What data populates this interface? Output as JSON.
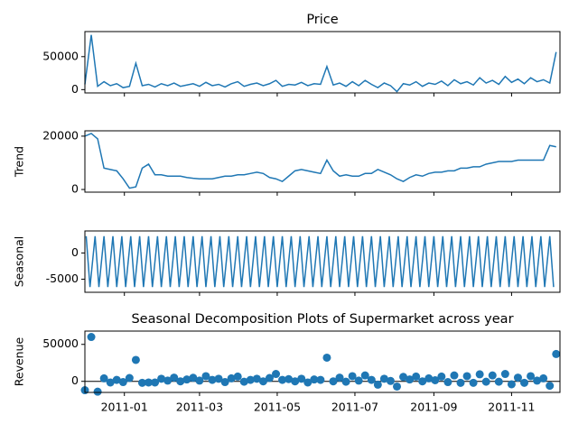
{
  "chart_data": [
    {
      "type": "line",
      "title": "Price",
      "color": "#1f77b4",
      "x": [
        0,
        5,
        10,
        15,
        20,
        25,
        30,
        35,
        40,
        45,
        50,
        55,
        60,
        65,
        70,
        75,
        80,
        85,
        90,
        95,
        100,
        105,
        110,
        115,
        120,
        125,
        130,
        135,
        140,
        145,
        150,
        155,
        160,
        165,
        170,
        175,
        180,
        185,
        190,
        195,
        200,
        205,
        210,
        215,
        220,
        225,
        230,
        235,
        240,
        245,
        250,
        255,
        260,
        265,
        270,
        275,
        280,
        285,
        290,
        295,
        300,
        305,
        310,
        315,
        320,
        325,
        330,
        335,
        340,
        345,
        350,
        355,
        360,
        365,
        370
      ],
      "values": [
        8000,
        83000,
        5000,
        12000,
        6000,
        9000,
        3000,
        5000,
        40000,
        6000,
        8000,
        4000,
        9000,
        6000,
        10000,
        5000,
        7000,
        9000,
        5000,
        11000,
        6000,
        8000,
        4000,
        9000,
        12000,
        5000,
        8000,
        10000,
        6000,
        9000,
        14000,
        5000,
        8000,
        7000,
        11000,
        6000,
        9000,
        8000,
        35000,
        7000,
        10000,
        5000,
        12000,
        6000,
        14000,
        8000,
        3000,
        10000,
        6000,
        -3000,
        9000,
        7000,
        12000,
        5000,
        10000,
        8000,
        13000,
        6000,
        15000,
        9000,
        12000,
        7000,
        18000,
        10000,
        14000,
        8000,
        20000,
        11000,
        16000,
        9000,
        18000,
        12000,
        15000,
        10000,
        57000
      ],
      "xlim": [
        0,
        373
      ],
      "ylim": [
        -5000,
        88000
      ],
      "yticks": [
        0,
        50000
      ]
    },
    {
      "type": "line",
      "y_label": "Trend",
      "color": "#1f77b4",
      "x": [
        0,
        5,
        10,
        15,
        20,
        25,
        30,
        35,
        40,
        45,
        50,
        55,
        60,
        65,
        70,
        75,
        80,
        85,
        90,
        95,
        100,
        105,
        110,
        115,
        120,
        125,
        130,
        135,
        140,
        145,
        150,
        155,
        160,
        165,
        170,
        175,
        180,
        185,
        190,
        195,
        200,
        205,
        210,
        215,
        220,
        225,
        230,
        235,
        240,
        245,
        250,
        255,
        260,
        265,
        270,
        275,
        280,
        285,
        290,
        295,
        300,
        305,
        310,
        315,
        320,
        325,
        330,
        335,
        340,
        345,
        350,
        355,
        360,
        365,
        370
      ],
      "values": [
        20000,
        21000,
        19000,
        8000,
        7500,
        7000,
        4000,
        500,
        1000,
        8000,
        9500,
        5500,
        5500,
        5000,
        5000,
        5000,
        4500,
        4200,
        4000,
        4000,
        4000,
        4500,
        5000,
        5000,
        5500,
        5500,
        6000,
        6500,
        6000,
        4500,
        4000,
        3000,
        5000,
        7000,
        7500,
        7000,
        6500,
        6000,
        11000,
        7000,
        5000,
        5500,
        5000,
        5000,
        6000,
        6000,
        7500,
        6500,
        5500,
        4000,
        3000,
        4500,
        5500,
        5000,
        6000,
        6500,
        6500,
        7000,
        7000,
        8000,
        8000,
        8500,
        8500,
        9500,
        10000,
        10500,
        10500,
        10500,
        11000,
        11000,
        11000,
        11000,
        11000,
        16500,
        16000
      ],
      "xlim": [
        0,
        373
      ],
      "ylim": [
        -1000,
        22000
      ],
      "yticks": [
        0,
        20000
      ]
    },
    {
      "type": "line",
      "y_label": "Seasonal",
      "color": "#1f77b4",
      "x": [
        1,
        4,
        8,
        11,
        15,
        18,
        22,
        25,
        29,
        32,
        36,
        39,
        43,
        46,
        50,
        53,
        57,
        60,
        64,
        67,
        71,
        74,
        78,
        81,
        85,
        88,
        92,
        95,
        99,
        102,
        106,
        109,
        113,
        116,
        120,
        123,
        127,
        130,
        134,
        137,
        141,
        144,
        148,
        151,
        155,
        158,
        162,
        165,
        169,
        172,
        176,
        179,
        183,
        186,
        190,
        193,
        197,
        200,
        204,
        207,
        211,
        214,
        218,
        221,
        225,
        228,
        232,
        235,
        239,
        242,
        246,
        249,
        253,
        256,
        260,
        263,
        267,
        270,
        274,
        277,
        281,
        284,
        288,
        291,
        295,
        298,
        302,
        305,
        309,
        312,
        316,
        319,
        323,
        326,
        330,
        333,
        337,
        340,
        344,
        347,
        351,
        354,
        358,
        361,
        365,
        368
      ],
      "values": [
        3200,
        -6500,
        3200,
        -6500,
        3200,
        -6500,
        3200,
        -6500,
        3200,
        -6500,
        3200,
        -6500,
        3200,
        -6500,
        3200,
        -6500,
        3200,
        -6500,
        3200,
        -6500,
        3200,
        -6500,
        3200,
        -6500,
        3200,
        -6500,
        3200,
        -6500,
        3200,
        -6500,
        3200,
        -6500,
        3200,
        -6500,
        3200,
        -6500,
        3200,
        -6500,
        3200,
        -6500,
        3200,
        -6500,
        3200,
        -6500,
        3200,
        -6500,
        3200,
        -6500,
        3200,
        -6500,
        3200,
        -6500,
        3200,
        -6500,
        3200,
        -6500,
        3200,
        -6500,
        3200,
        -6500,
        3200,
        -6500,
        3200,
        -6500,
        3200,
        -6500,
        3200,
        -6500,
        3200,
        -6500,
        3200,
        -6500,
        3200,
        -6500,
        3200,
        -6500,
        3200,
        -6500,
        3200,
        -6500,
        3200,
        -6500,
        3200,
        -6500,
        3200,
        -6500,
        3200,
        -6500,
        3200,
        -6500,
        3200,
        -6500,
        3200,
        -6500,
        3200,
        -6500,
        3200,
        -6500,
        3200,
        -6500,
        3200,
        -6500,
        3200,
        -6500,
        3200,
        -6500
      ],
      "xlim": [
        0,
        373
      ],
      "ylim": [
        -7500,
        4200
      ],
      "yticks": [
        -5000,
        0
      ]
    },
    {
      "type": "scatter",
      "title": "Seasonal Decomposition Plots of Supermarket across year",
      "y_label": "Revenue",
      "color": "#1f77b4",
      "zero_line": true,
      "x": [
        0,
        5,
        10,
        15,
        20,
        25,
        30,
        35,
        40,
        45,
        50,
        55,
        60,
        65,
        70,
        75,
        80,
        85,
        90,
        95,
        100,
        105,
        110,
        115,
        120,
        125,
        130,
        135,
        140,
        145,
        150,
        155,
        160,
        165,
        170,
        175,
        180,
        185,
        190,
        195,
        200,
        205,
        210,
        215,
        220,
        225,
        230,
        235,
        240,
        245,
        250,
        255,
        260,
        265,
        270,
        275,
        280,
        285,
        290,
        295,
        300,
        305,
        310,
        315,
        320,
        325,
        330,
        335,
        340,
        345,
        350,
        355,
        360,
        365,
        370
      ],
      "values": [
        -12000,
        60000,
        -14000,
        4000,
        -1500,
        2000,
        -1000,
        4500,
        29000,
        -2000,
        -1500,
        -1500,
        3500,
        1000,
        5000,
        0,
        2500,
        4800,
        1000,
        7000,
        2000,
        3500,
        -1000,
        4000,
        6500,
        -500,
        2000,
        3500,
        0,
        4500,
        10000,
        2000,
        3000,
        0,
        3500,
        -1500,
        2500,
        2000,
        32000,
        0,
        5000,
        -500,
        7000,
        1000,
        8000,
        2000,
        -4500,
        3500,
        500,
        -7000,
        6000,
        2500,
        6500,
        0,
        4000,
        1500,
        6500,
        -1000,
        8000,
        -2000,
        7000,
        -2000,
        9500,
        -500,
        8000,
        -500,
        10000,
        -4000,
        5000,
        -2000,
        7000,
        1000,
        4000,
        -6000,
        37000
      ],
      "xlim": [
        0,
        373
      ],
      "ylim": [
        -15000,
        68000
      ],
      "yticks": [
        0,
        50000
      ],
      "xticks": [
        {
          "value": 31,
          "label": "2011-01"
        },
        {
          "value": 90,
          "label": "2011-03"
        },
        {
          "value": 151,
          "label": "2011-05"
        },
        {
          "value": 212,
          "label": "2011-07"
        },
        {
          "value": 274,
          "label": "2011-09"
        },
        {
          "value": 335,
          "label": "2011-11"
        }
      ]
    }
  ]
}
